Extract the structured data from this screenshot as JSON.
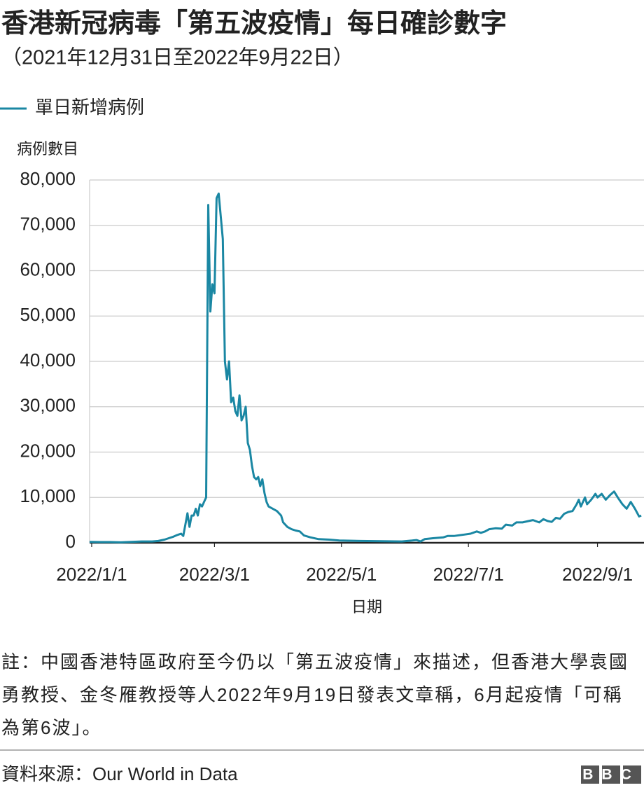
{
  "chart_data": {
    "type": "line",
    "title": "香港新冠病毒「第五波疫情」每日確診數字",
    "subtitle": "（2021年12月31日至2022年9月22日）",
    "ylabel": "病例數目",
    "xlabel": "日期",
    "note": "註：中國香港特區政府至今仍以「第五波疫情」來描述，但香港大學袁國勇教授、金冬雁教授等人2022年9月19日發表文章稱，6月起疫情「可稱為第6波」。",
    "source": "資料來源：Our World in Data",
    "logo": "BBC",
    "legend": "top-left",
    "grid": true,
    "xlim": [
      "2021/12/31",
      "2022/9/22"
    ],
    "xticks": [
      "2022/1/1",
      "2022/3/1",
      "2022/5/1",
      "2022/7/1",
      "2022/9/1"
    ],
    "ylim": [
      0,
      80000
    ],
    "yticks": [
      0,
      {
        "value": 10000,
        "label": "10,000"
      },
      {
        "value": 20000,
        "label": "20,000"
      },
      {
        "value": 30000,
        "label": "30,000"
      },
      {
        "value": 40000,
        "label": "40,000"
      },
      {
        "value": 50000,
        "label": "50,000"
      },
      {
        "value": 60000,
        "label": "60,000"
      },
      {
        "value": 70000,
        "label": "70,000"
      },
      {
        "value": 80000,
        "label": "80,000"
      }
    ],
    "x": [
      "2021/12/31",
      "2022/1/5",
      "2022/1/10",
      "2022/1/15",
      "2022/1/20",
      "2022/1/25",
      "2022/1/30",
      "2022/2/2",
      "2022/2/5",
      "2022/2/7",
      "2022/2/9",
      "2022/2/11",
      "2022/2/13",
      "2022/2/14",
      "2022/2/15",
      "2022/2/16",
      "2022/2/17",
      "2022/2/18",
      "2022/2/19",
      "2022/2/20",
      "2022/2/21",
      "2022/2/22",
      "2022/2/23",
      "2022/2/24",
      "2022/2/25",
      "2022/2/26",
      "2022/2/27",
      "2022/2/28",
      "2022/3/1",
      "2022/3/2",
      "2022/3/3",
      "2022/3/5",
      "2022/3/6",
      "2022/3/7",
      "2022/3/8",
      "2022/3/9",
      "2022/3/10",
      "2022/3/11",
      "2022/3/12",
      "2022/3/13",
      "2022/3/14",
      "2022/3/15",
      "2022/3/16",
      "2022/3/17",
      "2022/3/18",
      "2022/3/19",
      "2022/3/20",
      "2022/3/21",
      "2022/3/22",
      "2022/3/23",
      "2022/3/24",
      "2022/3/25",
      "2022/3/26",
      "2022/3/27",
      "2022/3/29",
      "2022/3/31",
      "2022/4/2",
      "2022/4/3",
      "2022/4/5",
      "2022/4/7",
      "2022/4/9",
      "2022/4/11",
      "2022/4/13",
      "2022/4/16",
      "2022/4/20",
      "2022/4/25",
      "2022/4/30",
      "2022/5/10",
      "2022/5/20",
      "2022/5/30",
      "2022/6/4",
      "2022/6/6",
      "2022/6/8",
      "2022/6/10",
      "2022/6/14",
      "2022/6/19",
      "2022/6/21",
      "2022/6/24",
      "2022/6/29",
      "2022/7/2",
      "2022/7/5",
      "2022/7/7",
      "2022/7/9",
      "2022/7/11",
      "2022/7/14",
      "2022/7/17",
      "2022/7/19",
      "2022/7/22",
      "2022/7/24",
      "2022/7/27",
      "2022/7/30",
      "2022/8/1",
      "2022/8/4",
      "2022/8/6",
      "2022/8/8",
      "2022/8/10",
      "2022/8/12",
      "2022/8/14",
      "2022/8/16",
      "2022/8/18",
      "2022/8/20",
      "2022/8/22",
      "2022/8/23",
      "2022/8/24",
      "2022/8/26",
      "2022/8/27",
      "2022/8/29",
      "2022/8/31",
      "2022/9/1",
      "2022/9/3",
      "2022/9/5",
      "2022/9/7",
      "2022/9/9",
      "2022/9/11",
      "2022/9/13",
      "2022/9/15",
      "2022/9/17",
      "2022/9/19",
      "2022/9/21",
      "2022/9/22"
    ],
    "series": [
      {
        "name": "單日新增病例",
        "color": "#1a87a3",
        "values": [
          200,
          150,
          150,
          100,
          200,
          300,
          300,
          400,
          700,
          1000,
          1300,
          1700,
          2000,
          1500,
          4000,
          6500,
          3500,
          6000,
          6000,
          7500,
          6000,
          8500,
          8000,
          9000,
          10000,
          74500,
          51000,
          57000,
          55000,
          76000,
          77000,
          67000,
          40000,
          36000,
          40000,
          31000,
          32000,
          29000,
          28000,
          32500,
          27000,
          28000,
          30000,
          22000,
          20500,
          17000,
          14500,
          14000,
          14500,
          12500,
          14000,
          11000,
          9000,
          8000,
          7500,
          7000,
          6000,
          4500,
          3500,
          3000,
          2700,
          2500,
          1600,
          1200,
          800,
          700,
          500,
          400,
          350,
          300,
          500,
          600,
          300,
          800,
          1000,
          1200,
          1500,
          1500,
          1800,
          2000,
          2500,
          2200,
          2500,
          3000,
          3200,
          3100,
          4000,
          3800,
          4500,
          4500,
          4800,
          5000,
          4500,
          5200,
          4800,
          4600,
          5500,
          5300,
          6400,
          6800,
          7000,
          8500,
          9500,
          8000,
          10000,
          8500,
          9500,
          10800,
          10000,
          10800,
          9500,
          10500,
          11300,
          9800,
          8500,
          7500,
          9000,
          7500,
          5800,
          6000
        ]
      }
    ]
  }
}
